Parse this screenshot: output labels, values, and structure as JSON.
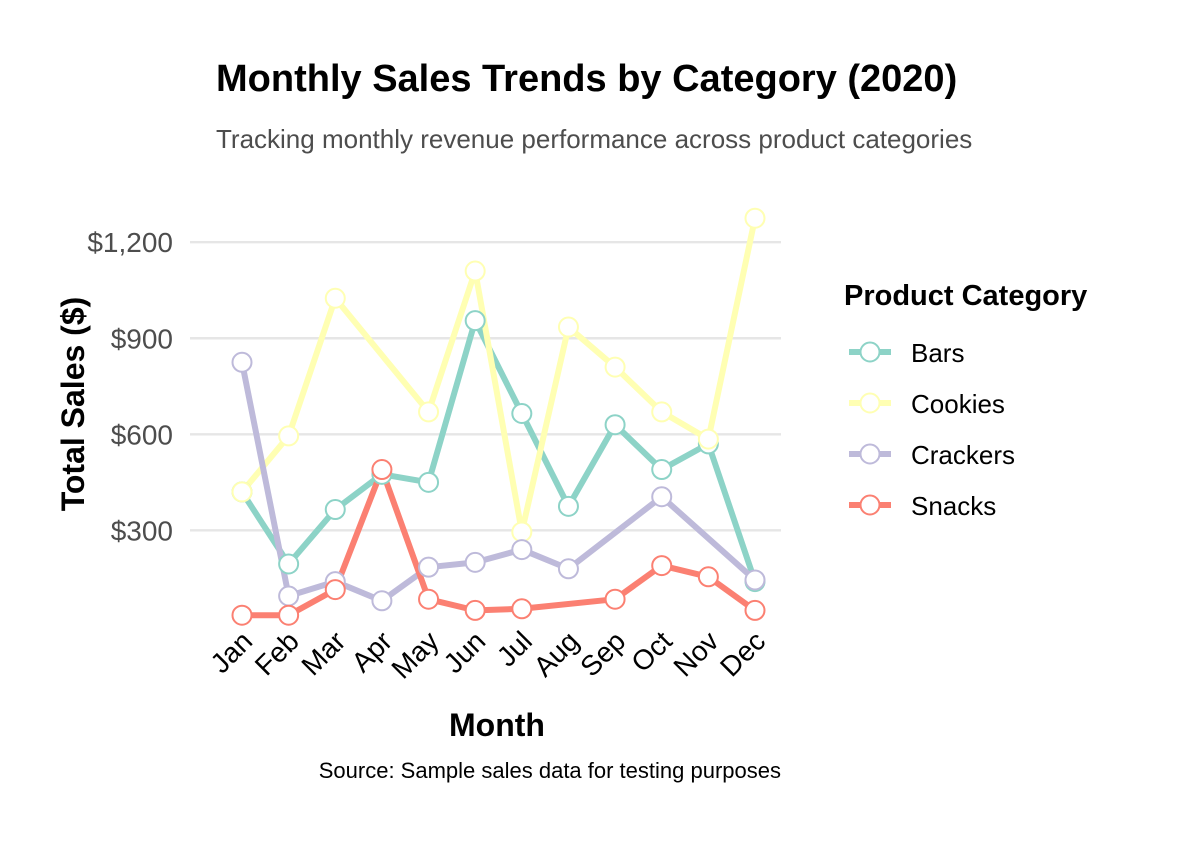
{
  "chart_data": {
    "type": "line",
    "title": "Monthly Sales Trends by Category (2020)",
    "subtitle": "Tracking monthly revenue performance across product categories",
    "xlabel": "Month",
    "ylabel": "Total Sales ($)",
    "caption": "Source: Sample sales data for testing purposes",
    "categories": [
      "Jan",
      "Feb",
      "Mar",
      "Apr",
      "May",
      "Jun",
      "Jul",
      "Aug",
      "Sep",
      "Oct",
      "Nov",
      "Dec"
    ],
    "ylim": [
      20,
      1285
    ],
    "yticks": [
      300,
      600,
      900,
      1200
    ],
    "ytick_labels": [
      "$300",
      "$600",
      "$900",
      "$1,200"
    ],
    "grid": true,
    "legend": {
      "title": "Product Category",
      "position": "right"
    },
    "series": [
      {
        "name": "Bars",
        "color": "#8DD3C7",
        "points": [
          {
            "x": "Jan",
            "y": 420
          },
          {
            "x": "Feb",
            "y": 195
          },
          {
            "x": "Mar",
            "y": 365
          },
          {
            "x": "Apr",
            "y": 475
          },
          {
            "x": "May",
            "y": 450
          },
          {
            "x": "Jun",
            "y": 955
          },
          {
            "x": "Jul",
            "y": 665
          },
          {
            "x": "Aug",
            "y": 375
          },
          {
            "x": "Sep",
            "y": 630
          },
          {
            "x": "Oct",
            "y": 490
          },
          {
            "x": "Nov",
            "y": 570
          },
          {
            "x": "Dec",
            "y": 140
          }
        ]
      },
      {
        "name": "Cookies",
        "color": "#FFFFB3",
        "points": [
          {
            "x": "Jan",
            "y": 420
          },
          {
            "x": "Feb",
            "y": 595
          },
          {
            "x": "Mar",
            "y": 1025
          },
          {
            "x": "May",
            "y": 670
          },
          {
            "x": "Jun",
            "y": 1110
          },
          {
            "x": "Jul",
            "y": 295
          },
          {
            "x": "Aug",
            "y": 935
          },
          {
            "x": "Sep",
            "y": 810
          },
          {
            "x": "Oct",
            "y": 670
          },
          {
            "x": "Nov",
            "y": 585
          },
          {
            "x": "Dec",
            "y": 1275
          }
        ]
      },
      {
        "name": "Crackers",
        "color": "#BEBADA",
        "points": [
          {
            "x": "Jan",
            "y": 825
          },
          {
            "x": "Feb",
            "y": 95
          },
          {
            "x": "Mar",
            "y": 140
          },
          {
            "x": "Apr",
            "y": 80
          },
          {
            "x": "May",
            "y": 185
          },
          {
            "x": "Jun",
            "y": 200
          },
          {
            "x": "Jul",
            "y": 240
          },
          {
            "x": "Aug",
            "y": 180
          },
          {
            "x": "Oct",
            "y": 405
          },
          {
            "x": "Dec",
            "y": 145
          }
        ]
      },
      {
        "name": "Snacks",
        "color": "#FB8072",
        "points": [
          {
            "x": "Jan",
            "y": 35
          },
          {
            "x": "Feb",
            "y": 35
          },
          {
            "x": "Mar",
            "y": 115
          },
          {
            "x": "Apr",
            "y": 490
          },
          {
            "x": "May",
            "y": 85
          },
          {
            "x": "Jun",
            "y": 50
          },
          {
            "x": "Jul",
            "y": 55
          },
          {
            "x": "Sep",
            "y": 85
          },
          {
            "x": "Oct",
            "y": 190
          },
          {
            "x": "Nov",
            "y": 155
          },
          {
            "x": "Dec",
            "y": 50
          }
        ]
      }
    ]
  }
}
